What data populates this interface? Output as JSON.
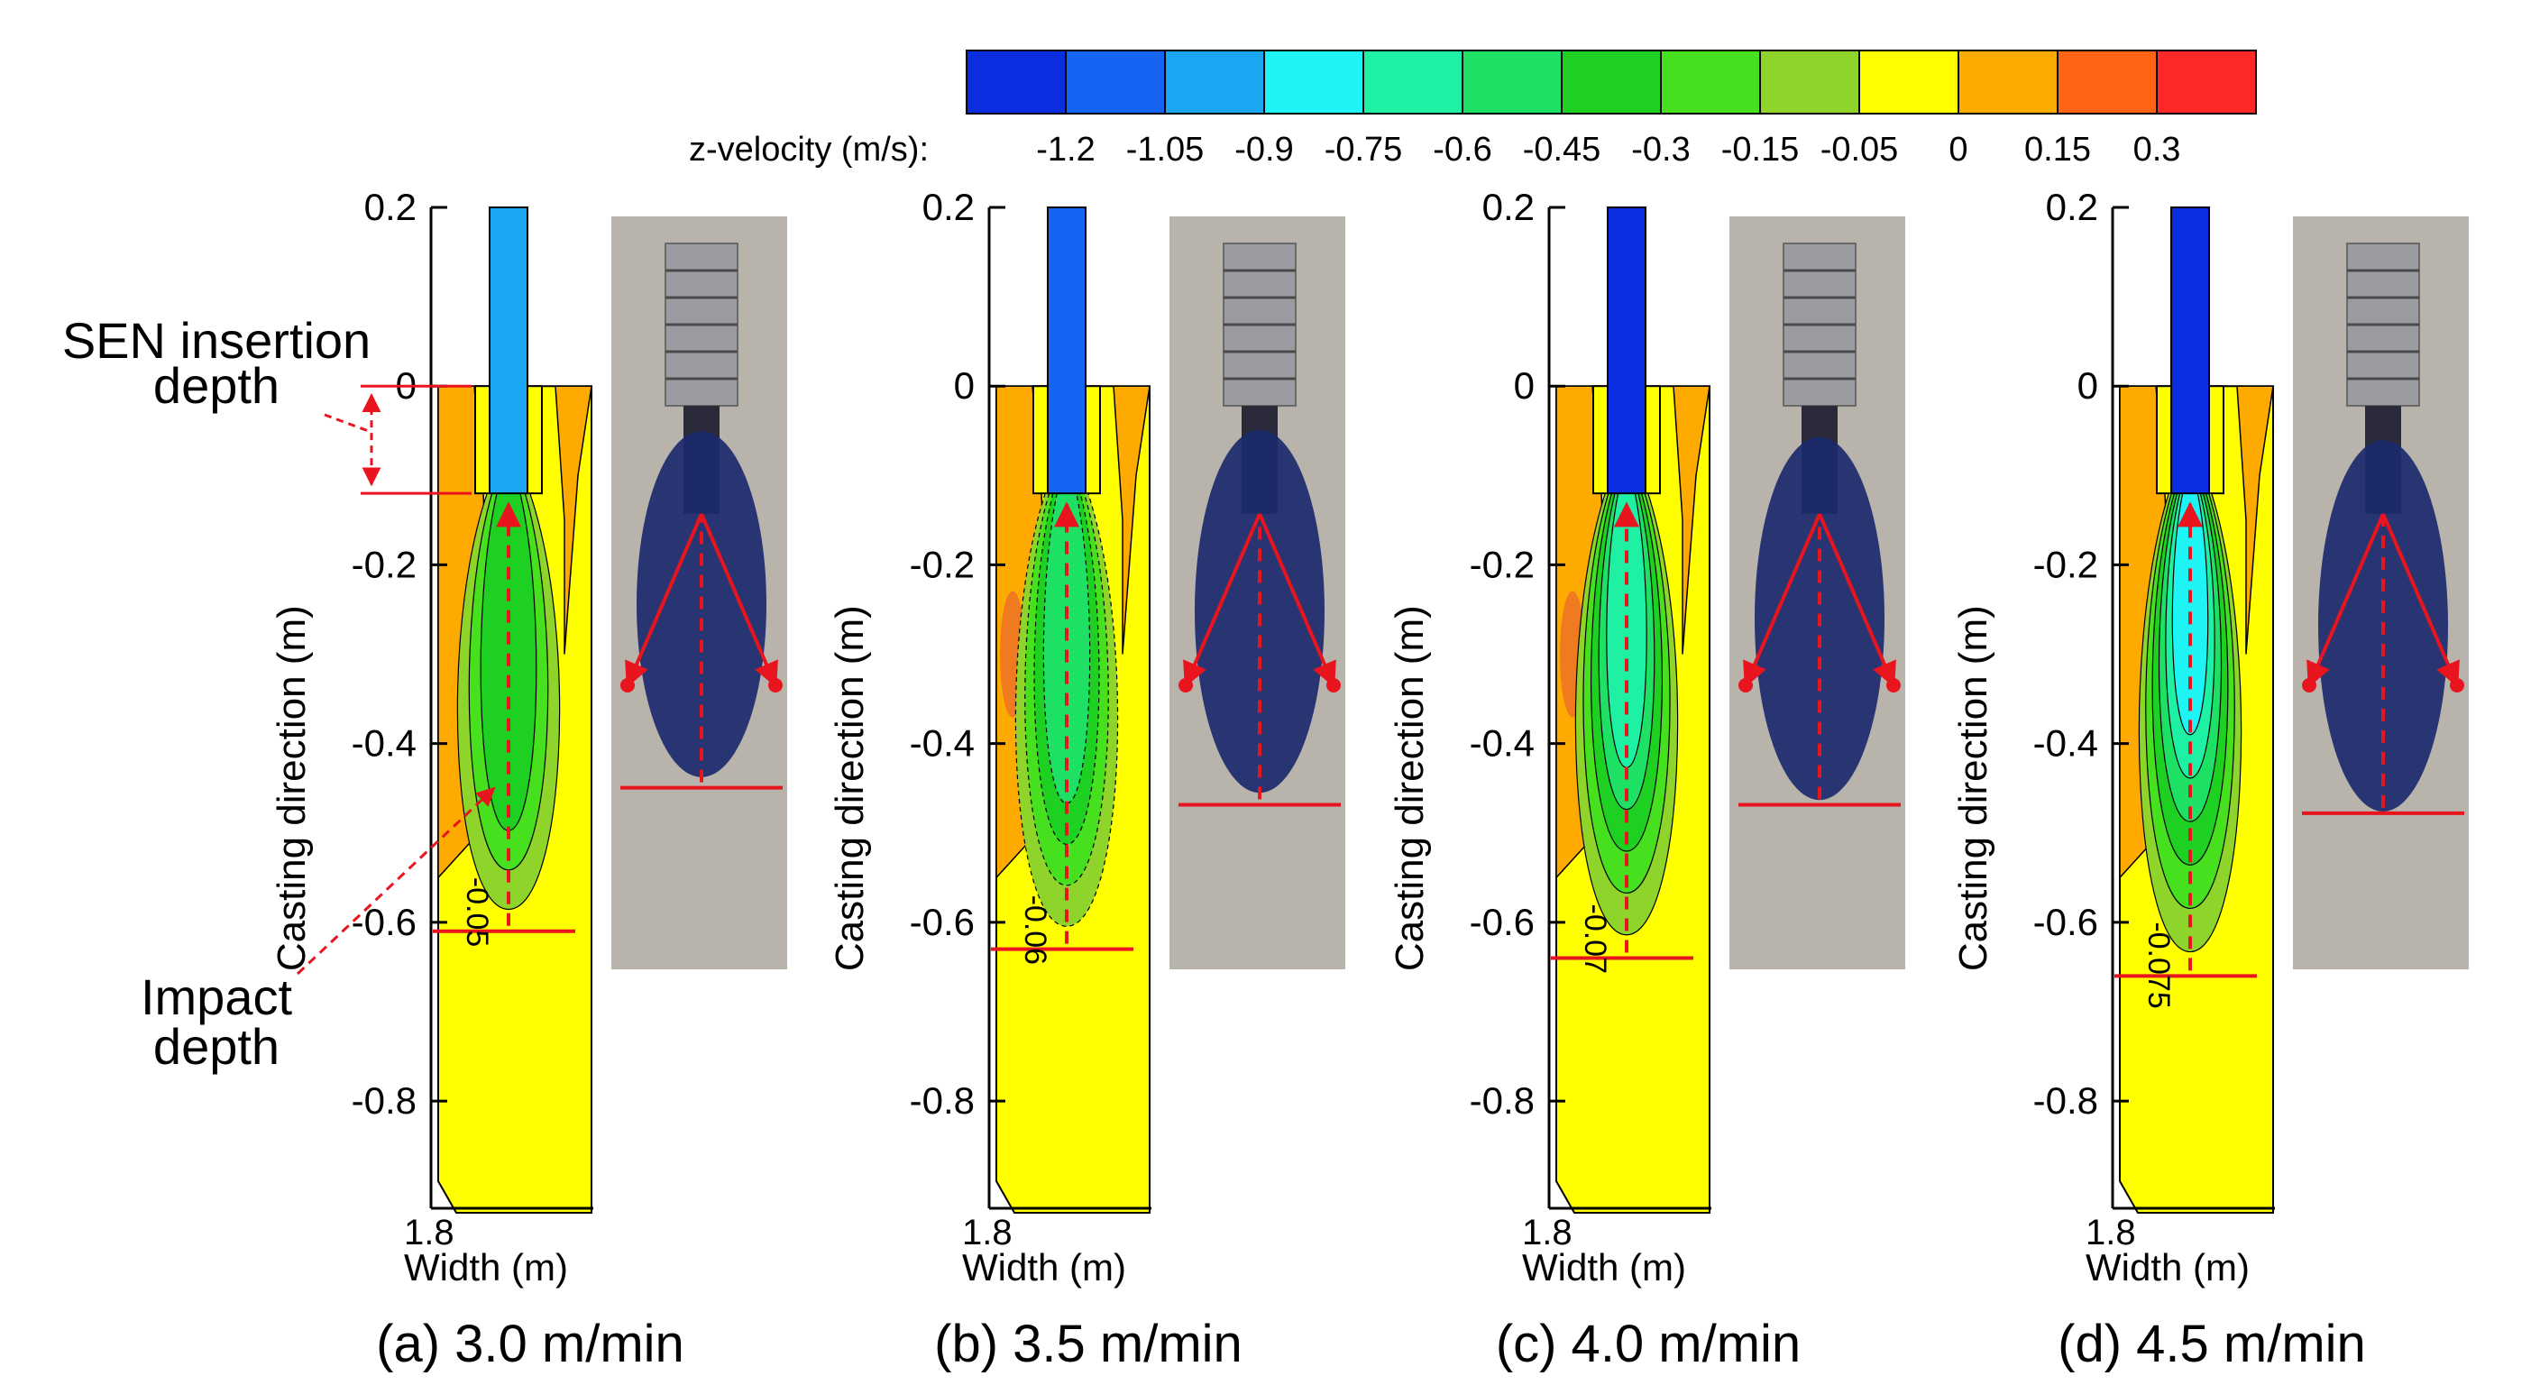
{
  "colorbar": {
    "label": "z-velocity (m/s):",
    "colors": [
      "#0a2ee0",
      "#1664f2",
      "#1aa6f0",
      "#1ef4f4",
      "#1ef0a4",
      "#1ee064",
      "#1ed022",
      "#46e01e",
      "#8ed42a",
      "#ffff00",
      "#ffaa00",
      "#ff6414",
      "#ff2828"
    ],
    "tick_labels": [
      "-1.2",
      "-1.05",
      "-0.9",
      "-0.75",
      "-0.6",
      "-0.45",
      "-0.3",
      "-0.15",
      "-0.05",
      "0",
      "0.15",
      "0.3"
    ]
  },
  "panel_colors": {
    "domain_yellow": "#ffff00",
    "orange": "#ffaa00",
    "deep_orange": "#f07a20",
    "red_line": "#e8141e",
    "outline": "#000000"
  },
  "chart_data": {
    "type": "heatmap",
    "title": "",
    "ylabel": "Casting direction (m)",
    "xlabel": "Width (m)",
    "y_ticks": [
      "0.2",
      "0",
      "-0.2",
      "-0.4",
      "-0.6",
      "-0.8"
    ],
    "x_tick": "1.8",
    "ylim": [
      -0.92,
      0.2
    ],
    "sen_insertion_depth_m": [
      0,
      -0.12
    ],
    "panels": [
      {
        "caption": "(a) 3.0 m/min",
        "sen_color": "#1aa6f0",
        "contour_label": "-0.05",
        "impact_depth_m": -0.61,
        "photo_depth_m": -0.57,
        "max_speed_m_s": -0.75
      },
      {
        "caption": "(b) 3.5 m/min",
        "sen_color": "#1664f2",
        "contour_label": "-0.06",
        "impact_depth_m": -0.63,
        "photo_depth_m": -0.59,
        "max_speed_m_s": -0.9
      },
      {
        "caption": "(c) 4.0 m/min",
        "sen_color": "#0a2ee0",
        "contour_label": "-0.07",
        "impact_depth_m": -0.64,
        "photo_depth_m": -0.59,
        "max_speed_m_s": -1.05
      },
      {
        "caption": "(d) 4.5 m/min",
        "sen_color": "#0a2ee0",
        "contour_label": "-0.075",
        "impact_depth_m": -0.66,
        "photo_depth_m": -0.6,
        "max_speed_m_s": -1.2
      }
    ]
  },
  "annotations": {
    "sen_insertion_line1": "SEN insertion",
    "sen_insertion_line2": "depth",
    "impact_line1": "Impact",
    "impact_line2": "depth"
  }
}
